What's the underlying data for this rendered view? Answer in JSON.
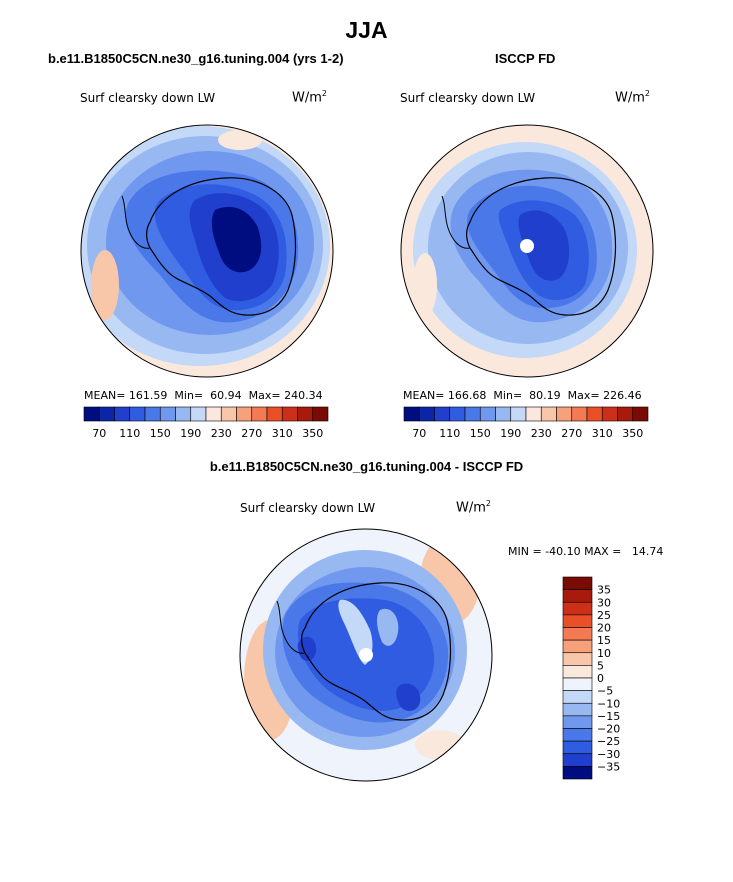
{
  "page": {
    "title": "JJA"
  },
  "panels": [
    {
      "heading": "b.e11.B1850C5CN.ne30_g16.tuning.004 (yrs 1-2)",
      "variable": "Surf clearsky down LW",
      "units": "W/m",
      "units_sup": "2",
      "stats": {
        "mean_label": "MEAN=",
        "mean": "161.59",
        "min_label": "Min=",
        "min": "60.94",
        "max_label": "Max=",
        "max": "240.34"
      }
    },
    {
      "heading": "ISCCP FD",
      "variable": "Surf clearsky down LW",
      "units": "W/m",
      "units_sup": "2",
      "stats": {
        "mean_label": "MEAN=",
        "mean": "166.68",
        "min_label": "Min=",
        "min": "80.19",
        "max_label": "Max=",
        "max": "226.46"
      }
    },
    {
      "heading": "b.e11.B1850C5CN.ne30_g16.tuning.004 - ISCCP FD",
      "variable": "Surf clearsky down LW",
      "units": "W/m",
      "units_sup": "2",
      "range_text": "MIN = -40.10 MAX =   14.74"
    }
  ],
  "chart_data": [
    {
      "type": "heatmap",
      "projection": "south-polar-stereographic",
      "title": "b.e11.B1850C5CN.ne30_g16.tuning.004 (yrs 1-2)",
      "variable": "Surf clearsky down LW",
      "units": "W/m2",
      "mean": 161.59,
      "min": 60.94,
      "max": 240.34,
      "legend": {
        "orientation": "horizontal",
        "levels": [
          70,
          90,
          110,
          130,
          150,
          170,
          190,
          210,
          230,
          250,
          270,
          290,
          310,
          330,
          350
        ],
        "tick_labels": [
          "70",
          "110",
          "150",
          "190",
          "230",
          "270",
          "310",
          "350"
        ],
        "colors": [
          "#000d80",
          "#0a25a8",
          "#1f3fcc",
          "#2f5ce0",
          "#4a78e8",
          "#6f98ee",
          "#98b8f2",
          "#c4d8f8",
          "#fbe8dc",
          "#f8c6a8",
          "#f6a07c",
          "#f37a52",
          "#ea5028",
          "#cc3018",
          "#a81a0c",
          "#7a0a04"
        ]
      }
    },
    {
      "type": "heatmap",
      "projection": "south-polar-stereographic",
      "title": "ISCCP FD",
      "variable": "Surf clearsky down LW",
      "units": "W/m2",
      "mean": 166.68,
      "min": 80.19,
      "max": 226.46,
      "legend": {
        "orientation": "horizontal",
        "levels": [
          70,
          90,
          110,
          130,
          150,
          170,
          190,
          210,
          230,
          250,
          270,
          290,
          310,
          330,
          350
        ],
        "tick_labels": [
          "70",
          "110",
          "150",
          "190",
          "230",
          "270",
          "310",
          "350"
        ],
        "colors": [
          "#000d80",
          "#0a25a8",
          "#1f3fcc",
          "#2f5ce0",
          "#4a78e8",
          "#6f98ee",
          "#98b8f2",
          "#c4d8f8",
          "#fbe8dc",
          "#f8c6a8",
          "#f6a07c",
          "#f37a52",
          "#ea5028",
          "#cc3018",
          "#a81a0c",
          "#7a0a04"
        ]
      }
    },
    {
      "type": "heatmap",
      "projection": "south-polar-stereographic",
      "title": "b.e11.B1850C5CN.ne30_g16.tuning.004 - ISCCP FD",
      "variable": "Surf clearsky down LW",
      "units": "W/m2",
      "min": -40.1,
      "max": 14.74,
      "legend": {
        "orientation": "vertical",
        "tick_labels": [
          "35",
          "30",
          "25",
          "20",
          "15",
          "10",
          "5",
          "0",
          "−5",
          "−10",
          "−15",
          "−20",
          "−25",
          "−30",
          "−35"
        ],
        "colors": [
          "#7a0a04",
          "#a81a0c",
          "#cc3018",
          "#ea5028",
          "#f37a52",
          "#f6a07c",
          "#f8c6a8",
          "#fbe8dc",
          "#eef3fc",
          "#c4d8f8",
          "#98b8f2",
          "#6f98ee",
          "#4a78e8",
          "#2f5ce0",
          "#1f3fcc",
          "#000d80"
        ]
      }
    }
  ]
}
